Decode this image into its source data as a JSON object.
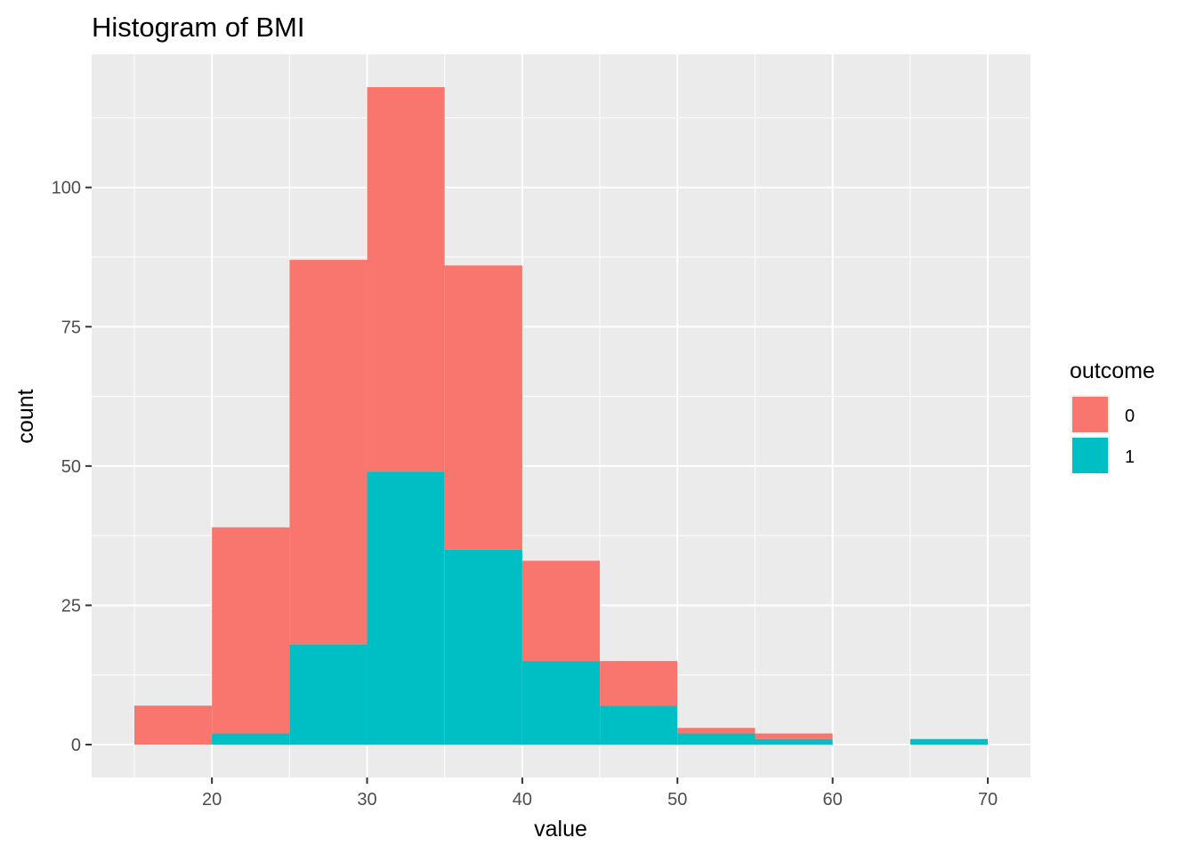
{
  "chart_data": {
    "type": "bar",
    "title": "Histogram of BMI",
    "xlabel": "value",
    "ylabel": "count",
    "stacked": true,
    "bin_width": 5,
    "bins": [
      15,
      20,
      25,
      30,
      35,
      40,
      45,
      50,
      55,
      60,
      65
    ],
    "xlim": [
      12.25,
      72.75
    ],
    "ylim": [
      -5.9,
      123.9
    ],
    "x_ticks": [
      20,
      30,
      40,
      50,
      60,
      70
    ],
    "y_ticks": [
      0,
      25,
      50,
      75,
      100
    ],
    "grid": true,
    "legend_title": "outcome",
    "legend_position": "right",
    "series": [
      {
        "name": "1",
        "color": "#00BFC4",
        "values": [
          0,
          2,
          18,
          49,
          35,
          15,
          7,
          2,
          1,
          0,
          1
        ]
      },
      {
        "name": "0",
        "color": "#F8766D",
        "values": [
          7,
          37,
          69,
          69,
          51,
          18,
          8,
          1,
          1,
          0,
          0
        ]
      }
    ],
    "legend_order": [
      "0",
      "1"
    ],
    "panel_color": "#EBEBEB",
    "grid_color": "#FFFFFF"
  }
}
